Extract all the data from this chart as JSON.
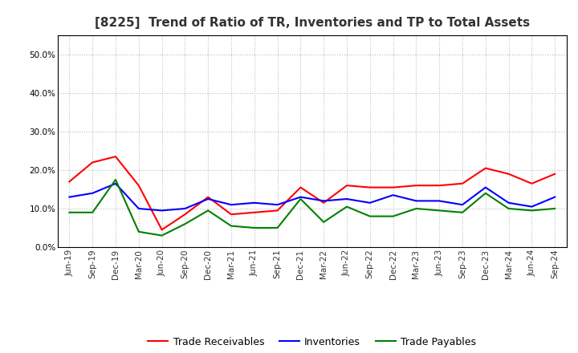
{
  "title": "[8225]  Trend of Ratio of TR, Inventories and TP to Total Assets",
  "x_labels": [
    "Jun-19",
    "Sep-19",
    "Dec-19",
    "Mar-20",
    "Jun-20",
    "Sep-20",
    "Dec-20",
    "Mar-21",
    "Jun-21",
    "Sep-21",
    "Dec-21",
    "Mar-22",
    "Jun-22",
    "Sep-22",
    "Dec-22",
    "Mar-23",
    "Jun-23",
    "Sep-23",
    "Dec-23",
    "Mar-24",
    "Jun-24",
    "Sep-24"
  ],
  "trade_receivables": [
    0.17,
    0.22,
    0.235,
    0.16,
    0.045,
    0.085,
    0.13,
    0.085,
    0.09,
    0.095,
    0.155,
    0.115,
    0.16,
    0.155,
    0.155,
    0.16,
    0.16,
    0.165,
    0.205,
    0.19,
    0.165,
    0.19
  ],
  "inventories": [
    0.13,
    0.14,
    0.165,
    0.1,
    0.095,
    0.1,
    0.125,
    0.11,
    0.115,
    0.11,
    0.13,
    0.12,
    0.125,
    0.115,
    0.135,
    0.12,
    0.12,
    0.11,
    0.155,
    0.115,
    0.105,
    0.13
  ],
  "trade_payables": [
    0.09,
    0.09,
    0.175,
    0.04,
    0.03,
    0.06,
    0.095,
    0.055,
    0.05,
    0.05,
    0.125,
    0.065,
    0.105,
    0.08,
    0.08,
    0.1,
    0.095,
    0.09,
    0.14,
    0.1,
    0.095,
    0.1
  ],
  "tr_color": "#FF0000",
  "inv_color": "#0000FF",
  "tp_color": "#008000",
  "background_color": "#FFFFFF",
  "plot_bg_color": "#FFFFFF",
  "grid_color": "#AAAAAA",
  "ylim": [
    0.0,
    0.55
  ],
  "yticks": [
    0.0,
    0.1,
    0.2,
    0.3,
    0.4,
    0.5
  ],
  "legend_labels": [
    "Trade Receivables",
    "Inventories",
    "Trade Payables"
  ],
  "title_fontsize": 11,
  "legend_fontsize": 9,
  "tick_fontsize": 7.5
}
